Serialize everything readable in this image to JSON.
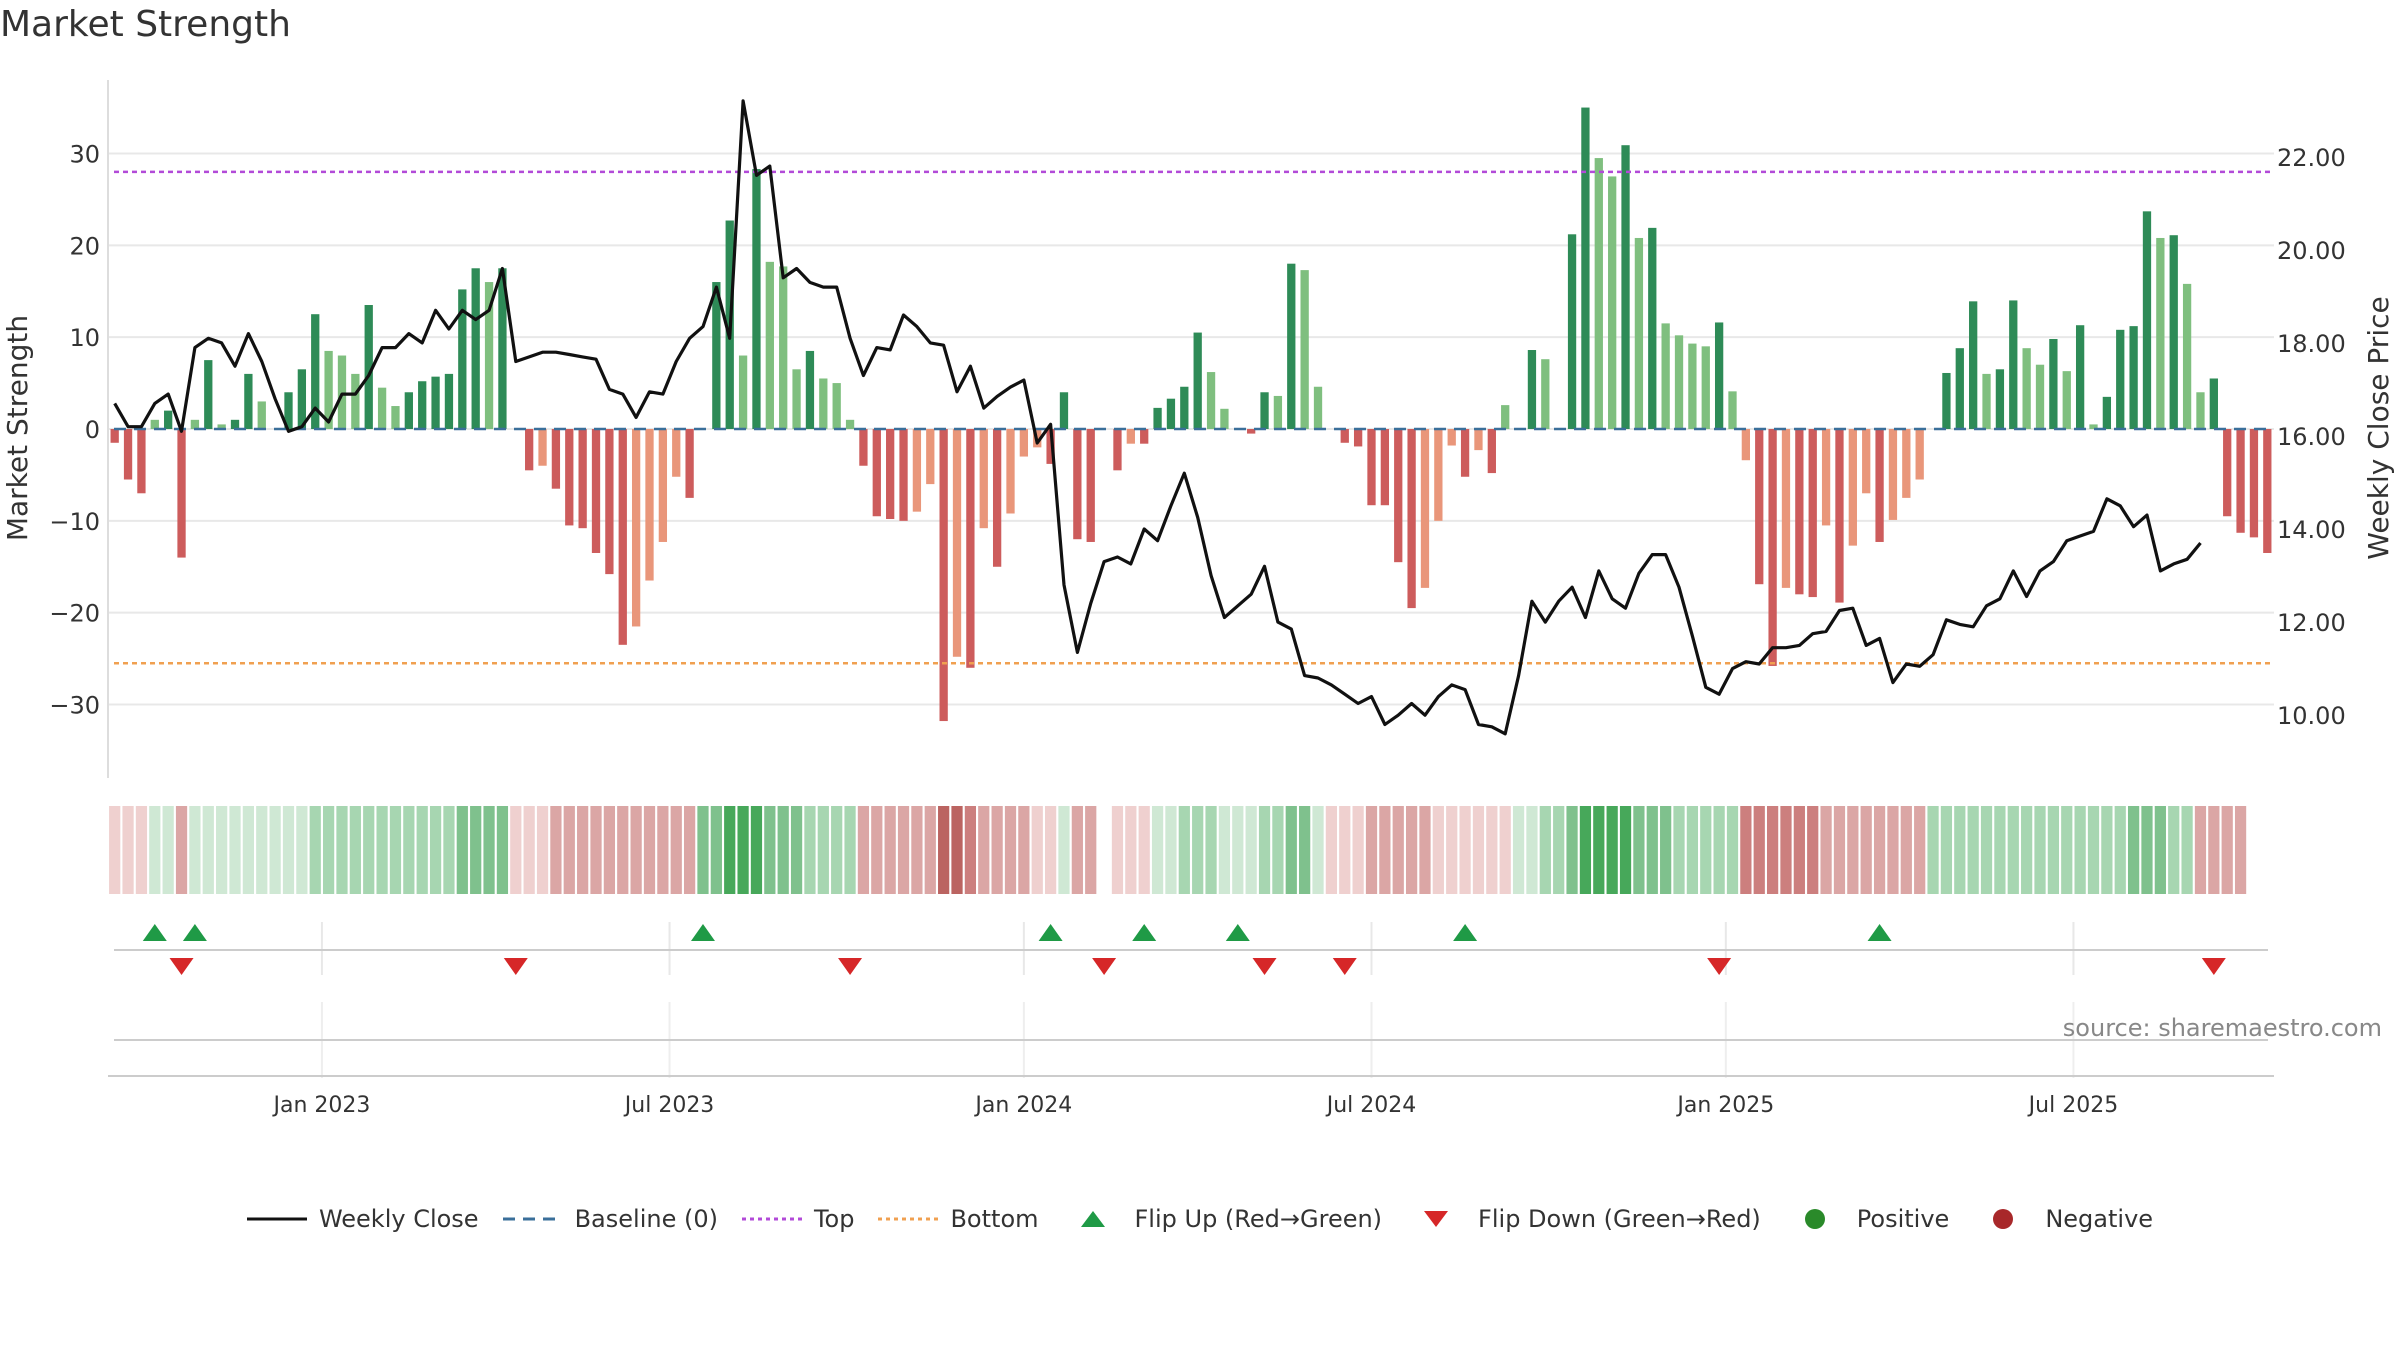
{
  "chart_data": {
    "type": "bar",
    "title": "Market Strength",
    "source": "source: sharemaestro.com",
    "ylabel": "Market Strength",
    "y2label": "Weekly Close Price",
    "ylim": [
      -38,
      38
    ],
    "y2lim": [
      8.65,
      23.65
    ],
    "yticks": [
      30,
      20,
      10,
      0,
      -10,
      -20,
      -30
    ],
    "ytick_labels": [
      "30",
      "20",
      "10",
      "0",
      "−10",
      "−20",
      "−30"
    ],
    "y2ticks": [
      22,
      20,
      18,
      16,
      14,
      12,
      10
    ],
    "y2tick_labels": [
      "22.00",
      "20.00",
      "18.00",
      "16.00",
      "14.00",
      "12.00",
      "10.00"
    ],
    "top_line": 28,
    "bottom_line": -25.5,
    "baseline": 0,
    "xticks": [
      {
        "i": 16,
        "label": "Jan 2023"
      },
      {
        "i": 42,
        "label": "Jul 2023"
      },
      {
        "i": 68.5,
        "label": "Jan 2024"
      },
      {
        "i": 94.5,
        "label": "Jul 2024"
      },
      {
        "i": 121,
        "label": "Jan 2025"
      },
      {
        "i": 147,
        "label": "Jul 2025"
      }
    ],
    "strength": [
      -1.5,
      -5.5,
      -7,
      1,
      2,
      -14,
      1,
      7.5,
      0.5,
      1,
      6,
      3,
      0,
      4,
      6.5,
      12.5,
      8.5,
      8,
      6,
      13.5,
      4.5,
      2.5,
      4,
      5.2,
      5.7,
      6,
      15.2,
      17.5,
      16,
      17.5,
      0,
      -4.5,
      -4,
      -6.5,
      -10.5,
      -10.8,
      -13.5,
      -15.8,
      -23.5,
      -21.5,
      -16.5,
      -12.3,
      -5.2,
      -7.5,
      0,
      16,
      22.7,
      8,
      28.3,
      18.2,
      17.7,
      6.5,
      8.5,
      5.5,
      5,
      1,
      -4,
      -9.5,
      -9.8,
      -10,
      -9,
      -6,
      -31.8,
      -24.8,
      -26,
      -10.8,
      -15,
      -9.2,
      -3,
      -2,
      -3.8,
      4,
      -12,
      -12.3,
      0,
      -4.5,
      -1.6,
      -1.6,
      2.3,
      3.3,
      4.6,
      10.5,
      6.2,
      2.2,
      0,
      -0.5,
      4,
      3.6,
      18,
      17.3,
      4.6,
      0,
      -1.5,
      -1.9,
      -8.3,
      -8.3,
      -14.5,
      -19.5,
      -17.3,
      -10,
      -1.8,
      -5.2,
      -2.3,
      -4.8,
      2.6,
      0,
      8.6,
      7.6,
      0,
      21.2,
      35,
      29.5,
      27.5,
      30.9,
      20.8,
      21.9,
      11.5,
      10.2,
      9.3,
      9,
      11.6,
      4.1,
      -3.4,
      -16.9,
      -25.8,
      -17.3,
      -18,
      -18.3,
      -10.5,
      -18.9,
      -12.7,
      -7,
      -12.3,
      -9.9,
      -7.5,
      -5.5,
      0,
      6.1,
      8.8,
      13.9,
      6,
      6.5,
      14,
      8.8,
      7,
      9.8,
      6.3,
      11.3,
      0.5,
      3.5,
      10.8,
      11.2,
      23.7,
      20.8,
      21.1,
      15.8,
      4,
      5.5,
      -9.5,
      -11.3,
      -11.8,
      -13.5
    ],
    "weekly_close": [
      16.7,
      16.2,
      16.2,
      16.7,
      16.9,
      16.1,
      17.9,
      18.1,
      18.0,
      17.5,
      18.2,
      17.6,
      16.8,
      16.1,
      16.2,
      16.6,
      16.3,
      16.9,
      16.9,
      17.3,
      17.9,
      17.9,
      18.2,
      18.0,
      18.7,
      18.3,
      18.7,
      18.5,
      18.7,
      19.6,
      17.6,
      17.7,
      17.8,
      17.8,
      17.75,
      17.7,
      17.65,
      17.0,
      16.9,
      16.4,
      16.95,
      16.9,
      17.6,
      18.1,
      18.35,
      19.2,
      18.1,
      23.2,
      21.6,
      21.8,
      19.4,
      19.6,
      19.3,
      19.2,
      19.2,
      18.1,
      17.3,
      17.9,
      17.85,
      18.6,
      18.35,
      18.0,
      17.95,
      16.95,
      17.5,
      16.6,
      16.85,
      17.05,
      17.2,
      15.85,
      16.25,
      12.8,
      11.35,
      12.4,
      13.3,
      13.4,
      13.25,
      14.0,
      13.75,
      14.5,
      15.2,
      14.25,
      13.0,
      12.1,
      12.35,
      12.6,
      13.2,
      12.0,
      11.85,
      10.85,
      10.8,
      10.65,
      10.45,
      10.25,
      10.4,
      9.8,
      10.0,
      10.25,
      10.0,
      10.4,
      10.65,
      10.55,
      9.8,
      9.75,
      9.6,
      10.85,
      12.45,
      12.0,
      12.45,
      12.75,
      12.1,
      13.1,
      12.5,
      12.3,
      13.05,
      13.45,
      13.45,
      12.75,
      11.7,
      10.6,
      10.45,
      11.0,
      11.15,
      11.1,
      11.45,
      11.45,
      11.5,
      11.75,
      11.8,
      12.25,
      12.3,
      11.5,
      11.65,
      10.7,
      11.1,
      11.05,
      11.3,
      12.05,
      11.95,
      11.9,
      12.35,
      12.5,
      13.1,
      12.55,
      13.1,
      13.3,
      13.75,
      13.85,
      13.95,
      14.65,
      14.5,
      14.05,
      14.3,
      13.1,
      13.25,
      13.35,
      13.7
    ],
    "heat_strip": [
      -1,
      -1,
      -1,
      1,
      1,
      -2,
      1,
      1,
      1,
      1,
      1,
      1,
      1,
      1,
      1,
      2,
      2,
      2,
      2,
      2,
      2,
      2,
      2,
      2,
      2,
      2,
      3,
      3,
      3,
      3,
      -1,
      -1,
      -1,
      -2,
      -2,
      -2,
      -2,
      -2,
      -2,
      -2,
      -2,
      -2,
      -2,
      -2,
      3,
      3,
      4,
      4,
      4,
      3,
      3,
      3,
      2,
      2,
      2,
      2,
      -2,
      -2,
      -2,
      -2,
      -2,
      -2,
      -4,
      -4,
      -3,
      -2,
      -2,
      -2,
      -2,
      -1,
      -1,
      1,
      -2,
      -2,
      0,
      -1,
      -1,
      -1,
      1,
      1,
      2,
      2,
      2,
      1,
      1,
      1,
      2,
      2,
      3,
      3,
      1,
      -1,
      -1,
      -1,
      -2,
      -2,
      -2,
      -2,
      -2,
      -1,
      -1,
      -1,
      -1,
      -1,
      -1,
      1,
      1,
      2,
      2,
      3,
      4,
      4,
      4,
      4,
      3,
      3,
      3,
      2,
      2,
      2,
      2,
      2,
      -3,
      -3,
      -3,
      -3,
      -3,
      -3,
      -2,
      -2,
      -2,
      -2,
      -2,
      -2,
      -2,
      -2,
      2,
      2,
      2,
      2,
      2,
      2,
      2,
      2,
      2,
      2,
      2,
      2,
      2,
      2,
      2,
      3,
      3,
      3,
      2,
      2,
      -2,
      -2,
      -2,
      -2
    ],
    "flip_up": [
      3,
      6,
      44,
      70,
      77,
      84,
      101,
      132
    ],
    "flip_down": [
      5,
      30,
      55,
      74,
      86,
      92,
      120,
      157
    ],
    "legend": [
      {
        "name": "Weekly Close",
        "kind": "solid-line",
        "color": "#111111"
      },
      {
        "name": "Baseline (0)",
        "kind": "dashed-line",
        "color": "#3a6f9a"
      },
      {
        "name": "Top",
        "kind": "dotted-line",
        "color": "#b24ad8"
      },
      {
        "name": "Bottom",
        "kind": "dotted-line",
        "color": "#f0a050"
      },
      {
        "name": "Flip Up (Red→Green)",
        "kind": "triangle-up",
        "color": "#1f9a46"
      },
      {
        "name": "Flip Down (Green→Red)",
        "kind": "triangle-down",
        "color": "#d62728"
      },
      {
        "name": "Positive",
        "kind": "dot",
        "color": "#2a8a2a"
      },
      {
        "name": "Negative",
        "kind": "dot",
        "color": "#a8282a"
      }
    ],
    "colors": {
      "pos_strong": "#2e8b57",
      "pos_light": "#7fbf7f",
      "neg_strong": "#cd5c5c",
      "neg_light": "#e9967a",
      "price": "#111111",
      "top": "#b24ad8",
      "bottom": "#f0a050",
      "baseline": "#3a6f9a",
      "grid": "#e8e8e8"
    }
  }
}
